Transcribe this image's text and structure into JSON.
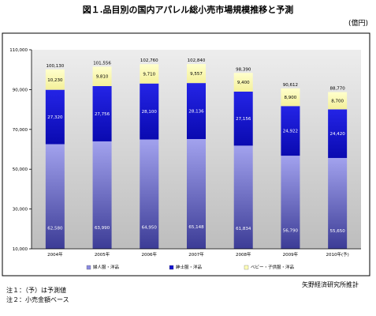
{
  "title": "図１.品目別の国内アパレル総小売市場規模推移と予測",
  "unit": "(億円)",
  "source": "矢野経済研究所推計",
  "notes": [
    "注１：（予）は予測値",
    "注２：小売金額ベース"
  ],
  "chart_data": {
    "type": "bar",
    "stacked": true,
    "title": "図１.品目別の国内アパレル総小売市場規模推移と予測",
    "xlabel": "",
    "ylabel": "",
    "ylim": [
      10000,
      110000
    ],
    "yticks": [
      10000,
      30000,
      50000,
      70000,
      90000,
      110000
    ],
    "ytick_labels": [
      "10,000",
      "30,000",
      "50,000",
      "70,000",
      "90,000",
      "110,000"
    ],
    "grid": false,
    "legend_position": "bottom",
    "categories": [
      "2004年",
      "2005年",
      "2006年",
      "2007年",
      "2008年",
      "2009年",
      "2010年(予)"
    ],
    "series": [
      {
        "name": "婦人服・洋品",
        "color": "#8a8ae0",
        "values": [
          62580,
          63990,
          64950,
          65148,
          61834,
          56790,
          55650
        ],
        "labels": [
          "62,580",
          "63,990",
          "64,950",
          "65,148",
          "61,834",
          "56,790",
          "55,650"
        ]
      },
      {
        "name": "紳士服・洋品",
        "color": "#1515d0",
        "values": [
          27320,
          27756,
          28100,
          28136,
          27156,
          24922,
          24420
        ],
        "labels": [
          "27,320",
          "27,756",
          "28,100",
          "28,136",
          "27,156",
          "24,922",
          "24,420"
        ]
      },
      {
        "name": "ベビー・子供服・洋品",
        "color": "#ffffb8",
        "values": [
          10230,
          9810,
          9710,
          9557,
          9400,
          8900,
          8700
        ],
        "labels": [
          "10,230",
          "9,810",
          "9,710",
          "9,557",
          "9,400",
          "8,900",
          "8,700"
        ]
      }
    ],
    "totals": [
      100130,
      101556,
      102760,
      102840,
      98390,
      90612,
      88770
    ],
    "total_labels": [
      "100,130",
      "101,556",
      "102,760",
      "102,840",
      "98,390",
      "90,612",
      "88,770"
    ]
  }
}
